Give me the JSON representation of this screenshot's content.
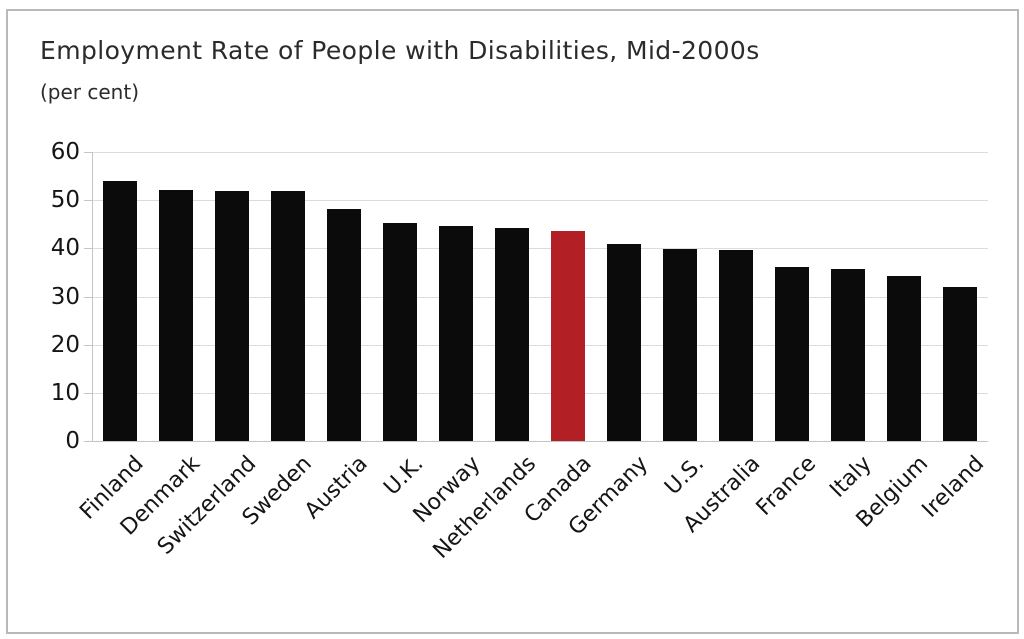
{
  "page": {
    "background": "#ffffff",
    "frame_border_color": "#b7babc"
  },
  "chart_data": {
    "type": "bar",
    "title": "Employment Rate of People with Disabilities, Mid-2000s",
    "subtitle": "(per cent)",
    "categories": [
      "Finland",
      "Denmark",
      "Switzerland",
      "Sweden",
      "Austria",
      "U.K.",
      "Norway",
      "Netherlands",
      "Canada",
      "Germany",
      "U.S.",
      "Australia",
      "France",
      "Italy",
      "Belgium",
      "Ireland"
    ],
    "values": [
      54.0,
      52.2,
      52.0,
      51.9,
      48.2,
      45.2,
      44.7,
      44.3,
      43.6,
      41.0,
      39.9,
      39.6,
      36.2,
      35.8,
      34.3,
      31.9
    ],
    "highlight_category": "Canada",
    "highlight_color": "#b21f24",
    "bar_color": "#0b0b0b",
    "xlabel": "",
    "ylabel": "",
    "ylim": [
      0,
      60
    ],
    "yticks": [
      0,
      10,
      20,
      30,
      40,
      50,
      60
    ],
    "grid": true,
    "grid_color": "#dcdcdc",
    "axis_color": "#c4c4c4",
    "legend": "none",
    "x_tick_rotation_deg": 45
  }
}
